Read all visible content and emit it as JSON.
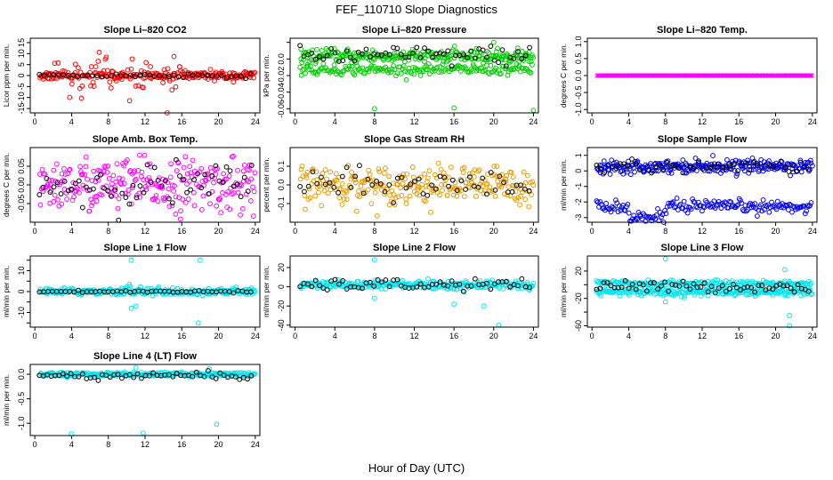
{
  "figure": {
    "title": "FEF_110710  Slope Diagnostics",
    "xlabel": "Hour of Day (UTC)"
  },
  "chart_data": [
    {
      "type": "scatter",
      "title": "Slope Li–820 CO2",
      "ylabel": "Licor ppm per min.",
      "xlim": [
        -0.5,
        24.5
      ],
      "xticks": [
        0,
        4,
        8,
        12,
        16,
        20,
        24
      ],
      "ylim": [
        -17,
        17
      ],
      "yticks": [
        -15,
        -10,
        -5,
        0,
        5,
        10,
        15
      ],
      "ytick_labels": [
        "-15",
        "-10",
        "-5",
        "0",
        "5",
        "10",
        "15"
      ],
      "color": "#ff0000",
      "center": 0,
      "band_sd": 1.0,
      "spread_sd": 5,
      "spread_range": [
        2,
        16
      ],
      "outlier_rate": 0.05,
      "outliers": [],
      "black_center": 0,
      "black_sd": 0.5,
      "black_count": 45,
      "second_group": null
    },
    {
      "type": "scatter",
      "title": "Slope Li–820 Pressure",
      "ylabel": "kPa per min.",
      "xlim": [
        -0.5,
        24.5
      ],
      "xticks": [
        0,
        4,
        8,
        12,
        16,
        20,
        24
      ],
      "ylim": [
        -0.065,
        0.025
      ],
      "yticks": [
        -0.06,
        -0.04,
        -0.02,
        0.0,
        0.02
      ],
      "ytick_labels": [
        "-0.06",
        "-0.04",
        "-0.02",
        "0.0",
        ""
      ],
      "color": "#00cc00",
      "center": 0.003,
      "band_sd": 0.004,
      "spread_sd": 0,
      "spread_range": [
        0,
        0
      ],
      "outlier_rate": 0,
      "outliers": [
        [
          8,
          -0.06
        ],
        [
          16,
          -0.059
        ],
        [
          20,
          0.02
        ],
        [
          24,
          -0.062
        ]
      ],
      "black_center": 0.004,
      "black_sd": 0.006,
      "black_count": 60,
      "second_group": {
        "center": -0.013,
        "sd": 0.003,
        "start": 0,
        "end": 24
      }
    },
    {
      "type": "scatter",
      "title": "Slope Li–820 Temp.",
      "ylabel": "degrees C per min.",
      "xlim": [
        -0.5,
        24.5
      ],
      "xticks": [
        0,
        4,
        8,
        12,
        16,
        20,
        24
      ],
      "ylim": [
        -1.1,
        1.1
      ],
      "yticks": [
        -1,
        -0.5,
        0,
        0.5,
        1
      ],
      "ytick_labels": [
        "-1.0",
        "-0.5",
        "0.0",
        "0.5",
        "1.0"
      ],
      "color": "#ff00ff",
      "center": 0,
      "band_sd": 0,
      "spread_sd": 0,
      "spread_range": [
        0,
        0
      ],
      "outlier_rate": 0,
      "outliers": [],
      "black_center": 0,
      "black_sd": 0,
      "black_count": 0,
      "second_group": null,
      "mark": "x"
    },
    {
      "type": "scatter",
      "title": "Slope Amb. Box Temp.",
      "ylabel": "degrees C per min.",
      "xlim": [
        -0.5,
        24.5
      ],
      "xticks": [
        0,
        4,
        8,
        12,
        16,
        20,
        24
      ],
      "ylim": [
        -0.1,
        0.1
      ],
      "yticks": [
        -0.05,
        0,
        0.05
      ],
      "ytick_labels": [
        "-0.05",
        "0.00",
        "0.05"
      ],
      "color": "#ff00ff",
      "center": 0,
      "band_sd": 0.035,
      "spread_sd": 0,
      "spread_range": [
        0,
        0
      ],
      "outlier_rate": 0,
      "outliers": [],
      "black_center": 0,
      "black_sd": 0.03,
      "black_count": 60,
      "second_group": null
    },
    {
      "type": "scatter",
      "title": "Slope Gas Stream RH",
      "ylabel": "percent per min.",
      "xlim": [
        -0.5,
        24.5
      ],
      "xticks": [
        0,
        4,
        8,
        12,
        16,
        20,
        24
      ],
      "ylim": [
        -0.2,
        0.2
      ],
      "yticks": [
        -0.1,
        0,
        0.1
      ],
      "ytick_labels": [
        "-0.1",
        "0.0",
        "0.1"
      ],
      "color": "#e69a00",
      "center": 0,
      "band_sd": 0.05,
      "spread_sd": 0,
      "spread_range": [
        0,
        0
      ],
      "outlier_rate": 0,
      "outliers": [],
      "black_center": 0,
      "black_sd": 0.04,
      "black_count": 55,
      "second_group": null
    },
    {
      "type": "scatter",
      "title": "Slope Sample Flow",
      "ylabel": "ml/min per min.",
      "xlim": [
        -0.5,
        24.5
      ],
      "xticks": [
        0,
        4,
        8,
        12,
        16,
        20,
        24
      ],
      "ylim": [
        -3.3,
        1.5
      ],
      "yticks": [
        -3,
        -2,
        -1,
        0,
        1
      ],
      "ytick_labels": [
        "-3",
        "-2",
        "-1",
        "0",
        "1"
      ],
      "color": "#0000ee",
      "center": 0.3,
      "band_sd": 0.2,
      "spread_sd": 0,
      "spread_range": [
        0,
        0
      ],
      "outlier_rate": 0,
      "outliers": [],
      "black_center": 0.3,
      "black_sd": 0.2,
      "black_count": 55,
      "second_group": {
        "center": -2.3,
        "sd": 0.2,
        "start": 0,
        "end": 24,
        "dip": [
          4,
          8,
          -3.0
        ]
      }
    },
    {
      "type": "scatter",
      "title": "Slope Line 1 Flow",
      "ylabel": "ml/min per min.",
      "xlim": [
        -0.5,
        24.5
      ],
      "xticks": [
        0,
        4,
        8,
        12,
        16,
        20,
        24
      ],
      "ylim": [
        -17,
        17
      ],
      "yticks": [
        -15,
        -10,
        -5,
        0,
        5,
        10,
        15
      ],
      "ytick_labels": [
        "",
        "-10",
        "",
        "0",
        "",
        "10",
        ""
      ],
      "color": "#00e5ee",
      "center": 0,
      "band_sd": 0.8,
      "spread_sd": 2,
      "spread_range": [
        10,
        14
      ],
      "outlier_rate": 0.01,
      "outliers": [
        [
          10.5,
          15
        ],
        [
          18,
          15
        ],
        [
          17.8,
          -15
        ],
        [
          10.5,
          -8
        ],
        [
          11,
          -7
        ]
      ],
      "black_center": 0,
      "black_sd": 0.2,
      "black_count": 50,
      "second_group": null
    },
    {
      "type": "scatter",
      "title": "Slope Line 2 Flow",
      "ylabel": "ml/min per min.",
      "xlim": [
        -0.5,
        24.5
      ],
      "xticks": [
        0,
        4,
        8,
        12,
        16,
        20,
        24
      ],
      "ylim": [
        -42,
        32
      ],
      "yticks": [
        -40,
        -20,
        0,
        20
      ],
      "ytick_labels": [
        "-40",
        "-20",
        "0",
        "20"
      ],
      "color": "#00e5ee",
      "center": 2,
      "band_sd": 2,
      "spread_sd": 3,
      "spread_range": [
        7,
        24
      ],
      "outlier_rate": 0.03,
      "outliers": [
        [
          8,
          28
        ],
        [
          8,
          -12
        ],
        [
          16,
          -18
        ],
        [
          19,
          -20
        ],
        [
          20.5,
          -40
        ]
      ],
      "black_center": 2,
      "black_sd": 3,
      "black_count": 60,
      "second_group": null
    },
    {
      "type": "scatter",
      "title": "Slope Line 3 Flow",
      "ylabel": "ml/min per min.",
      "xlim": [
        -0.5,
        24.5
      ],
      "xticks": [
        0,
        4,
        8,
        12,
        16,
        20,
        24
      ],
      "ylim": [
        -62,
        42
      ],
      "yticks": [
        -60,
        -40,
        -20,
        0,
        20
      ],
      "ytick_labels": [
        "-60",
        "",
        "-20",
        "",
        "20"
      ],
      "color": "#00e5ee",
      "center": -10,
      "band_sd": 3,
      "spread_sd": 0,
      "spread_range": [
        0,
        0
      ],
      "outlier_rate": 0.02,
      "outliers": [
        [
          8,
          38
        ],
        [
          8,
          -25
        ],
        [
          21.5,
          -45
        ],
        [
          21.5,
          -60
        ],
        [
          21,
          22
        ]
      ],
      "black_center": -3,
      "black_sd": 4,
      "black_count": 60,
      "second_group": {
        "center": 2,
        "sd": 2,
        "start": 0,
        "end": 24
      }
    },
    {
      "type": "scatter",
      "title": "Slope Line 4 (LT) Flow",
      "ylabel": "ml/min per min.",
      "xlim": [
        -0.5,
        24.5
      ],
      "xticks": [
        0,
        4,
        8,
        12,
        16,
        20,
        24
      ],
      "ylim": [
        -1.25,
        0.2
      ],
      "yticks": [
        -1.0,
        -0.5,
        0.0
      ],
      "ytick_labels": [
        "-1.0",
        "-0.5",
        "0.0"
      ],
      "color": "#00e5ee",
      "center": 0,
      "band_sd": 0.02,
      "spread_sd": 0,
      "spread_range": [
        0,
        0
      ],
      "outlier_rate": 0.01,
      "outliers": [
        [
          4,
          -1.22
        ],
        [
          11.8,
          -1.2
        ],
        [
          19.8,
          -1.02
        ],
        [
          11,
          0.13
        ],
        [
          19,
          0.11
        ]
      ],
      "black_center": -0.03,
      "black_sd": 0.04,
      "black_count": 55,
      "second_group": null
    }
  ]
}
